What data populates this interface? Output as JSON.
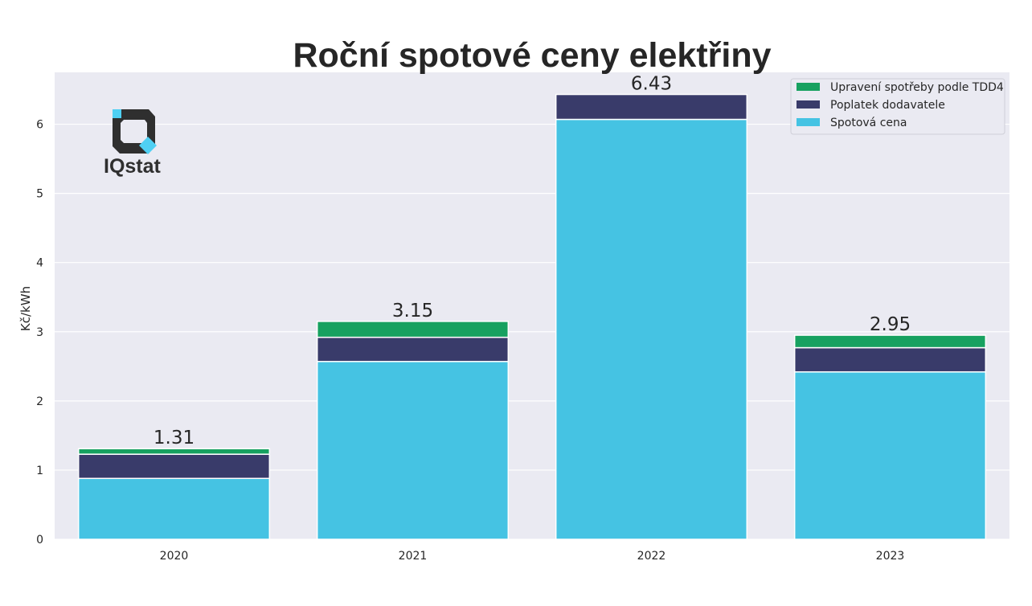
{
  "chart_data": {
    "type": "bar",
    "stacked": true,
    "title": "Roční spotové ceny elektřiny",
    "xlabel": "",
    "ylabel": "Kč/kWh",
    "categories": [
      "2020",
      "2021",
      "2022",
      "2023"
    ],
    "ylim": [
      0,
      6.75
    ],
    "yticks": [
      0,
      1,
      2,
      3,
      4,
      5,
      6
    ],
    "grid": true,
    "legend_position": "top-right",
    "series": [
      {
        "name": "Spotová cena",
        "color": "#45c3e3",
        "values": [
          0.88,
          2.57,
          6.07,
          2.42
        ]
      },
      {
        "name": "Poplatek dodavatele",
        "color": "#393b6a",
        "values": [
          0.35,
          0.35,
          0.36,
          0.35
        ]
      },
      {
        "name": "Upravení spotřeby podle TDD4",
        "color": "#17a160",
        "values": [
          0.08,
          0.23,
          0.0,
          0.18
        ]
      }
    ],
    "totals": [
      "1.31",
      "3.15",
      "6.43",
      "2.95"
    ],
    "legend_order": [
      "Upravení spotřeby podle TDD4",
      "Poplatek dodavatele",
      "Spotová cena"
    ]
  },
  "logo": {
    "text": "IQstat",
    "icon": "iqstat-logo-icon",
    "accent": "#4fd0f3",
    "dark": "#2f2f2f"
  },
  "colors": {
    "plot_bg": "#eaeaf2",
    "grid": "#ffffff",
    "text": "#262626"
  }
}
